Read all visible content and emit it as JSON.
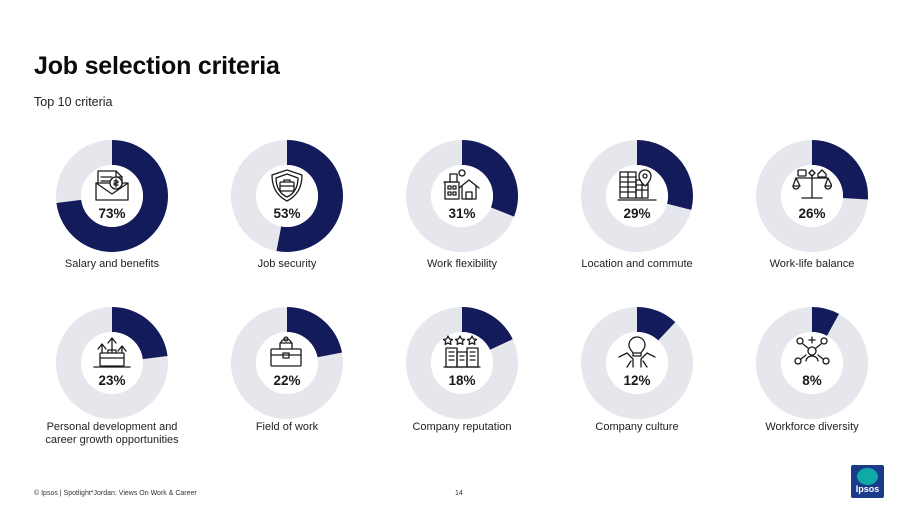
{
  "header": {
    "title": "Job selection criteria",
    "subtitle": "Top 10 criteria"
  },
  "footer": {
    "source": "© Ipsos | Spotlight*Jordan: Views On Work & Career",
    "page": "14"
  },
  "logo": {
    "text": "Ipsos"
  },
  "colors": {
    "accent": "#131b5b",
    "track": "#e5e7ed"
  },
  "chart_data": {
    "type": "pie",
    "subtype": "donut",
    "title": "",
    "categories": [
      "Salary and benefits",
      "Job security",
      "Work flexibility",
      "Location and commute",
      "Work-life balance",
      "Personal development and career growth opportunities",
      "Field of work",
      "Company reputation",
      "Company culture",
      "Workforce diversity"
    ],
    "values": [
      73,
      53,
      31,
      29,
      26,
      23,
      22,
      18,
      12,
      8
    ],
    "value_labels": [
      "73%",
      "53%",
      "31%",
      "29%",
      "26%",
      "23%",
      "22%",
      "18%",
      "12%",
      "8%"
    ],
    "label_lines": [
      [
        "Salary and benefits"
      ],
      [
        "Job security"
      ],
      [
        "Work flexibility"
      ],
      [
        "Location and commute"
      ],
      [
        "Work-life balance"
      ],
      [
        "Personal development and",
        "career growth opportunities"
      ],
      [
        "Field of work"
      ],
      [
        "Company reputation"
      ],
      [
        "Company culture"
      ],
      [
        "Workforce diversity"
      ]
    ],
    "icons": [
      "salary-envelope-icon",
      "security-shield-icon",
      "work-flexibility-house-icon",
      "location-building-icon",
      "work-life-balance-scale-icon",
      "growth-arrows-icon",
      "field-of-work-briefcase-icon",
      "reputation-stars-icon",
      "culture-hands-icon",
      "diversity-people-icon"
    ]
  }
}
